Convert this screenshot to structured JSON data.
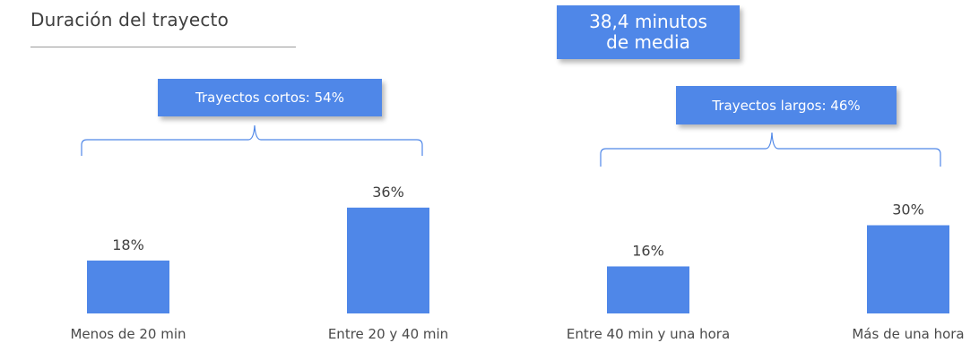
{
  "title": "Duración del trayecto",
  "average_box": {
    "line1": "38,4 minutos",
    "line2": "de media"
  },
  "groups": {
    "short_label": "Trayectos cortos: 54%",
    "long_label": "Trayectos largos: 46%"
  },
  "colors": {
    "bar": "#4f87e8",
    "bracket": "#4f87e8",
    "text": "#3f3f3f"
  },
  "chart_data": {
    "type": "bar",
    "categories": [
      "Menos de 20 min",
      "Entre 20 y 40 min",
      "Entre 40 min y una hora",
      "Más de una hora"
    ],
    "values": [
      18,
      36,
      16,
      30
    ],
    "data_labels": [
      "18%",
      "36%",
      "16%",
      "30%"
    ],
    "title": "Duración del trayecto",
    "xlabel": "",
    "ylabel": "",
    "ylim": [
      0,
      36
    ],
    "grid": false
  }
}
